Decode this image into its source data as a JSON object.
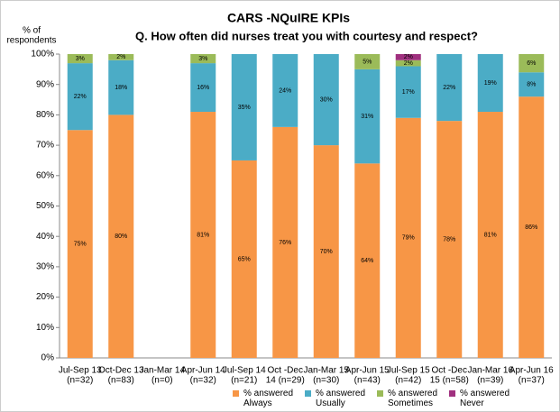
{
  "chart_data": {
    "type": "stacked_bar",
    "title": "CARS -NQuIRE KPIs",
    "subtitle": "Q. How often did nurses treat you with courtesy and respect?",
    "ylabel": [
      "% of",
      "respondents"
    ],
    "categories": [
      [
        "Jul-Sep 13",
        "(n=32)"
      ],
      [
        "Oct-Dec 13",
        "(n=83)"
      ],
      [
        "Jan-Mar 14",
        "(n=0)"
      ],
      [
        "Apr-Jun 14",
        "(n=32)"
      ],
      [
        "Jul-Sep 14",
        "(n=21)"
      ],
      [
        "Oct -Dec",
        "14 (n=29)"
      ],
      [
        "Jan-Mar 15",
        "(n=30)"
      ],
      [
        "Apr-Jun 15",
        "(n=43)"
      ],
      [
        "Jul-Sep 15",
        "(n=42)"
      ],
      [
        "Oct -Dec",
        "15 (n=58)"
      ],
      [
        "Jan-Mar 16",
        "(n=39)"
      ],
      [
        "Apr-Jun 16",
        "(n=37)"
      ]
    ],
    "series": [
      {
        "name": "% answered Always",
        "color": "#f79646",
        "values": [
          75,
          80,
          null,
          81,
          65,
          76,
          70,
          64,
          79,
          78,
          81,
          86
        ],
        "value_labels": [
          "75%",
          "80%",
          null,
          "81%",
          "65%",
          "76%",
          "70%",
          "64%",
          "79%",
          "78%",
          "81%",
          "86%"
        ]
      },
      {
        "name": "% answered Usually",
        "color": "#4bacc6",
        "values": [
          22,
          18,
          null,
          16,
          35,
          24,
          30,
          31,
          17,
          22,
          19,
          8
        ],
        "value_labels": [
          "22%",
          "18%",
          null,
          "16%",
          "35%",
          "24%",
          "30%",
          "31%",
          "17%",
          "22%",
          "19%",
          "8%"
        ]
      },
      {
        "name": "% answered Sometimes",
        "color": "#9bbb59",
        "values": [
          3,
          2,
          null,
          3,
          0,
          0,
          0,
          5,
          2,
          0,
          0,
          6
        ],
        "value_labels": [
          "3%",
          "2%",
          null,
          "3%",
          null,
          null,
          null,
          "5%",
          "2%",
          null,
          null,
          "6%"
        ]
      },
      {
        "name": "% answered Never",
        "color": "#a0307f",
        "values": [
          0,
          0,
          null,
          0,
          0,
          0,
          0,
          0,
          2,
          0,
          0,
          0
        ],
        "value_labels": [
          null,
          null,
          null,
          null,
          null,
          null,
          null,
          null,
          "2%",
          null,
          null,
          null
        ]
      }
    ],
    "ylim": [
      0,
      100
    ],
    "yticks": [
      {
        "value": 0,
        "label": "0%"
      },
      {
        "value": 10,
        "label": "10%"
      },
      {
        "value": 20,
        "label": "20%"
      },
      {
        "value": 30,
        "label": "30%"
      },
      {
        "value": 40,
        "label": "40%"
      },
      {
        "value": 50,
        "label": "50%"
      },
      {
        "value": 60,
        "label": "60%"
      },
      {
        "value": 70,
        "label": "70%"
      },
      {
        "value": 80,
        "label": "80%"
      },
      {
        "value": 90,
        "label": "90%"
      },
      {
        "value": 100,
        "label": "100%"
      }
    ],
    "legend": "bottom"
  }
}
